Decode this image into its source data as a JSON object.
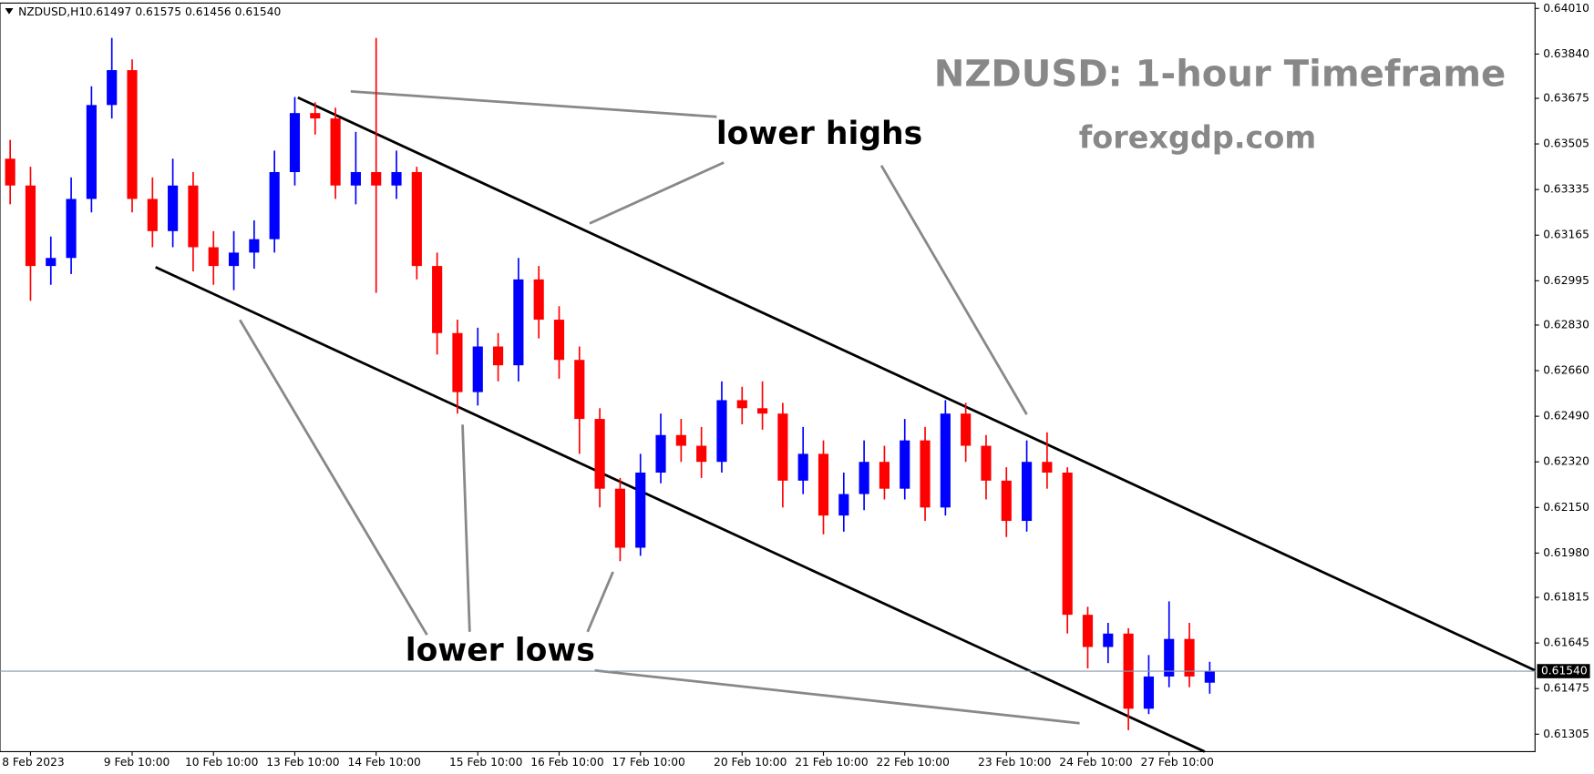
{
  "chart_data": {
    "type": "candlestick",
    "header": {
      "symbol": "NZDUSD,H1",
      "open": 0.61497,
      "high": 0.61575,
      "low": 0.61456,
      "close": {
        "value": 0.6154,
        "label": "0.61540"
      }
    },
    "title": "NZDUSD: 1-hour Timeframe",
    "subtitle": "forexgdp.com",
    "annotations": [
      "lower highs",
      "lower lows"
    ],
    "up_color": "#0000ff",
    "down_color": "#ff0000",
    "categories": [
      null,
      "8 Feb 2023",
      null,
      null,
      null,
      null,
      "9 Feb 10:00",
      null,
      null,
      null,
      "10 Feb 10:00",
      null,
      null,
      null,
      "13 Feb 10:00",
      null,
      null,
      null,
      "14 Feb 10:00",
      null,
      null,
      null,
      null,
      "15 Feb 10:00",
      null,
      null,
      null,
      "16 Feb 10:00",
      null,
      null,
      null,
      "17 Feb 10:00",
      null,
      null,
      null,
      null,
      "20 Feb 10:00",
      null,
      null,
      null,
      "21 Feb 10:00",
      null,
      null,
      null,
      "22 Feb 10:00",
      null,
      null,
      null,
      null,
      "23 Feb 10:00",
      null,
      null,
      null,
      "24 Feb 10:00",
      null,
      null,
      null,
      "27 Feb 10:00",
      null,
      null
    ],
    "open": [
      0.6345,
      0.6335,
      0.6305,
      0.6308,
      0.633,
      0.6365,
      0.6378,
      0.633,
      0.6318,
      0.6335,
      0.6312,
      0.6305,
      0.631,
      0.6315,
      0.634,
      0.6362,
      0.636,
      0.6335,
      0.634,
      0.6335,
      0.634,
      0.6305,
      0.628,
      0.6258,
      0.6275,
      0.6268,
      0.63,
      0.6285,
      0.627,
      0.6248,
      0.6222,
      0.62,
      0.6228,
      0.6242,
      0.6238,
      0.6232,
      0.6255,
      0.6252,
      0.625,
      0.6225,
      0.6235,
      0.6212,
      0.622,
      0.6232,
      0.6222,
      0.624,
      0.6215,
      0.625,
      0.6238,
      0.6225,
      0.621,
      0.6232,
      0.6228,
      0.6175,
      0.6163,
      0.6168,
      0.614,
      0.6152,
      0.6166,
      0.61497
    ],
    "high": [
      0.6352,
      0.6342,
      0.6316,
      0.6338,
      0.6372,
      0.639,
      0.6382,
      0.6338,
      0.6345,
      0.634,
      0.6318,
      0.6318,
      0.6322,
      0.6348,
      0.6368,
      0.6366,
      0.6364,
      0.6355,
      0.639,
      0.6348,
      0.6342,
      0.631,
      0.6285,
      0.6282,
      0.628,
      0.6308,
      0.6305,
      0.629,
      0.6275,
      0.6252,
      0.6226,
      0.6235,
      0.625,
      0.6248,
      0.6245,
      0.6262,
      0.626,
      0.6262,
      0.6254,
      0.6245,
      0.624,
      0.6228,
      0.624,
      0.6238,
      0.6248,
      0.6245,
      0.6255,
      0.6254,
      0.6242,
      0.623,
      0.624,
      0.6243,
      0.623,
      0.6178,
      0.6172,
      0.617,
      0.616,
      0.618,
      0.6172,
      0.61575
    ],
    "low": [
      0.6328,
      0.6292,
      0.6298,
      0.6302,
      0.6325,
      0.636,
      0.6325,
      0.6312,
      0.6312,
      0.6303,
      0.6298,
      0.6296,
      0.6304,
      0.631,
      0.6335,
      0.6354,
      0.633,
      0.6328,
      0.6295,
      0.633,
      0.63,
      0.6272,
      0.625,
      0.6253,
      0.6262,
      0.6262,
      0.6278,
      0.6263,
      0.6235,
      0.6215,
      0.6195,
      0.6197,
      0.6224,
      0.6232,
      0.6226,
      0.6228,
      0.6246,
      0.6244,
      0.6215,
      0.622,
      0.6205,
      0.6206,
      0.6214,
      0.6218,
      0.6218,
      0.621,
      0.6212,
      0.6232,
      0.6218,
      0.6204,
      0.6206,
      0.6222,
      0.6168,
      0.6155,
      0.6157,
      0.6132,
      0.6138,
      0.6148,
      0.6148,
      0.61456
    ],
    "close": [
      0.6335,
      0.6305,
      0.6308,
      0.633,
      0.6365,
      0.6378,
      0.633,
      0.6318,
      0.6335,
      0.6312,
      0.6305,
      0.631,
      0.6315,
      0.634,
      0.6362,
      0.636,
      0.6335,
      0.634,
      0.6335,
      0.634,
      0.6305,
      0.628,
      0.6258,
      0.6275,
      0.6268,
      0.63,
      0.6285,
      0.627,
      0.6248,
      0.6222,
      0.62,
      0.6228,
      0.6242,
      0.6238,
      0.6232,
      0.6255,
      0.6252,
      0.625,
      0.6225,
      0.6235,
      0.6212,
      0.622,
      0.6232,
      0.6222,
      0.624,
      0.6215,
      0.625,
      0.6238,
      0.6225,
      0.621,
      0.6232,
      0.6228,
      0.6175,
      0.6163,
      0.6168,
      0.614,
      0.6152,
      0.6166,
      0.6152,
      0.6154
    ],
    "last_price": {
      "value": 0.6154,
      "label": "0.61540"
    },
    "ylim": [
      0.6124,
      0.6403
    ],
    "yticks": [
      {
        "value": 0.6401,
        "label": "0.64010"
      },
      {
        "value": 0.6384,
        "label": "0.63840"
      },
      0.63675,
      0.63505,
      0.63335,
      0.63165,
      0.62995,
      {
        "value": 0.6283,
        "label": "0.62830"
      },
      {
        "value": 0.6266,
        "label": "0.62660"
      },
      {
        "value": 0.6249,
        "label": "0.62490"
      },
      {
        "value": 0.6232,
        "label": "0.62320"
      },
      {
        "value": 0.6215,
        "label": "0.62150"
      },
      {
        "value": 0.6198,
        "label": "0.61980"
      },
      0.61815,
      0.61645,
      0.61475,
      0.61305
    ]
  }
}
